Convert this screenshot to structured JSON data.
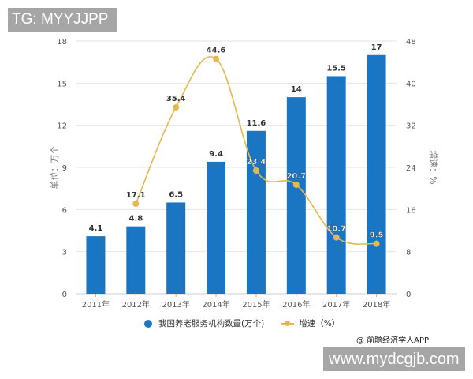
{
  "overlays": {
    "top_label": "TG: MYYJJPP",
    "bottom_label": "www.mydcgjb.com",
    "credit": "@ 前瞻经济学人APP"
  },
  "colors": {
    "bar": "#1a75c2",
    "line": "#e3b94f",
    "grid": "#e6e6e6",
    "axis_text": "#555555",
    "label_text": "#333333"
  },
  "legend": {
    "series1": "我国养老服务机构数量(万个)",
    "series2": "增速（%）"
  },
  "chart_data": {
    "type": "bar+line",
    "title": "",
    "categories": [
      "2011年",
      "2012年",
      "2013年",
      "2014年",
      "2015年",
      "2016年",
      "2017年",
      "2018年"
    ],
    "series": [
      {
        "name": "我国养老服务机构数量(万个)",
        "type": "bar",
        "axis": "left",
        "values": [
          4.1,
          4.8,
          6.5,
          9.4,
          11.6,
          14,
          15.5,
          17
        ],
        "labels": [
          "4.1",
          "4.8",
          "6.5",
          "9.4",
          "11.6",
          "14",
          "15.5",
          "17"
        ]
      },
      {
        "name": "增速（%）",
        "type": "line",
        "axis": "right",
        "values": [
          null,
          17.1,
          35.4,
          44.6,
          23.4,
          20.7,
          10.7,
          9.5
        ],
        "labels": [
          "",
          "17.1",
          "35.4",
          "44.6",
          "23.4",
          "20.7",
          "10.7",
          "9.5"
        ]
      }
    ],
    "ylabel": "单位：万个",
    "y2label": "增速：%",
    "ylim": [
      0,
      18
    ],
    "y2lim": [
      0,
      48
    ],
    "yticks": [
      "0",
      "3",
      "6",
      "9",
      "12",
      "15",
      "18"
    ],
    "y2ticks": [
      "0",
      "8",
      "16",
      "24",
      "32",
      "40",
      "48"
    ],
    "grid": true,
    "legend_position": "bottom"
  }
}
